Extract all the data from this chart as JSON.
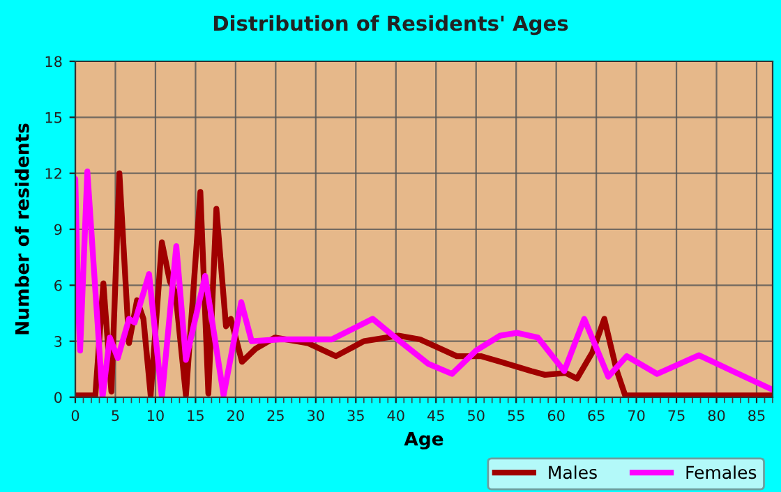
{
  "chart_data": {
    "type": "line",
    "title": "Distribution of Residents' Ages",
    "xlabel": "Age",
    "ylabel": "Number of residents",
    "xlim": [
      0,
      87
    ],
    "xticks": [
      0,
      5,
      10,
      15,
      20,
      25,
      30,
      35,
      40,
      45,
      50,
      55,
      60,
      65,
      70,
      75,
      80,
      85
    ],
    "ylim": [
      0,
      18
    ],
    "yticks": [
      0,
      3,
      6,
      9,
      12,
      15,
      18
    ],
    "grid": true,
    "legend": "bottom right",
    "line_style": "solid",
    "marker": "none",
    "series": [
      {
        "name": "Males",
        "color": "#a00000",
        "x": [
          0,
          2.5,
          3.5,
          4.5,
          5.5,
          6.7,
          7.7,
          8.5,
          9.4,
          10.8,
          11.8,
          12.5,
          13.8,
          15.6,
          16.6,
          17.6,
          18.8,
          19.4,
          20.8,
          22.5,
          24.9,
          29,
          32.5,
          36,
          40.3,
          43,
          47.6,
          50.6,
          53,
          56.9,
          58.6,
          61.2,
          62.6,
          64.5,
          66,
          67.5,
          68.6,
          75,
          87
        ],
        "values": [
          0.1,
          0.1,
          6.1,
          0.3,
          12,
          2.9,
          5.2,
          4.2,
          0.1,
          8.3,
          6.2,
          5.6,
          0.1,
          11,
          0.2,
          10.1,
          3.8,
          4.2,
          1.9,
          2.6,
          3.2,
          2.9,
          2.2,
          3,
          3.3,
          3.1,
          2.2,
          2.2,
          1.9,
          1.4,
          1.2,
          1.3,
          1.0,
          2.4,
          4.2,
          1.5,
          0.1,
          0.1,
          0.1
        ]
      },
      {
        "name": "Females",
        "color": "#ff00ff",
        "x": [
          0,
          0.35,
          0.6,
          1.5,
          3.4,
          4.3,
          5.3,
          6.7,
          7.4,
          9.2,
          10.8,
          12.6,
          13.8,
          16.2,
          18.5,
          20.7,
          22,
          25.5,
          29,
          32,
          37.1,
          40.5,
          44,
          47,
          50,
          53,
          55.1,
          57.7,
          61,
          63.5,
          66.5,
          68.8,
          72.6,
          77.8,
          82,
          87
        ],
        "values": [
          11.7,
          5,
          2.5,
          12.1,
          0,
          3.2,
          2.1,
          4.2,
          4,
          6.6,
          0,
          8.1,
          2,
          6.5,
          0.1,
          5.1,
          3,
          3.1,
          3.1,
          3.1,
          4.2,
          3,
          1.8,
          1.25,
          2.5,
          3.3,
          3.45,
          3.2,
          1.4,
          4.2,
          1.1,
          2.2,
          1.25,
          2.25,
          1.4,
          0.4
        ]
      }
    ]
  }
}
